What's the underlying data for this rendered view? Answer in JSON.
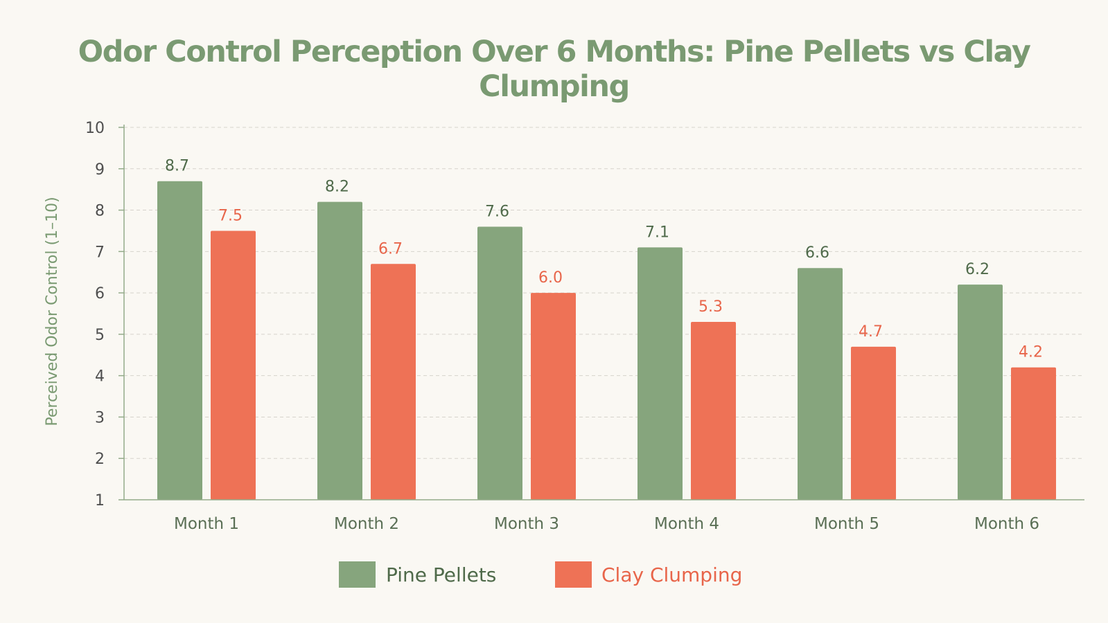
{
  "colors": {
    "background": "#faf8f3",
    "title": "#7a9a72",
    "pine": "#86a57d",
    "clay": "#ee7256",
    "grid": "#d6d3cc",
    "axis": "#93ab8a",
    "pine_label": "#4f6a4a",
    "clay_label": "#e8654a"
  },
  "chart_data": {
    "type": "bar",
    "title": "Odor Control Perception Over 6 Months: Pine Pellets vs Clay Clumping",
    "xlabel": "",
    "ylabel": "Perceived Odor Control (1–10)",
    "ylim": [
      1,
      10
    ],
    "yticks": [
      1,
      2,
      3,
      4,
      5,
      6,
      7,
      8,
      9,
      10
    ],
    "categories": [
      "Month 1",
      "Month 2",
      "Month 3",
      "Month 4",
      "Month 5",
      "Month 6"
    ],
    "series": [
      {
        "name": "Pine Pellets",
        "values": [
          8.7,
          8.2,
          7.6,
          7.1,
          6.6,
          6.2
        ],
        "labels": [
          "8.7",
          "8.2",
          "7.6",
          "7.1",
          "6.6",
          "6.2"
        ],
        "color": "#86a57d"
      },
      {
        "name": "Clay Clumping",
        "values": [
          7.5,
          6.7,
          6.0,
          5.3,
          4.7,
          4.2
        ],
        "labels": [
          "7.5",
          "6.7",
          "6.0",
          "5.3",
          "4.7",
          "4.2"
        ],
        "color": "#ee7256"
      }
    ],
    "grid": true,
    "legend_position": "bottom-center"
  }
}
